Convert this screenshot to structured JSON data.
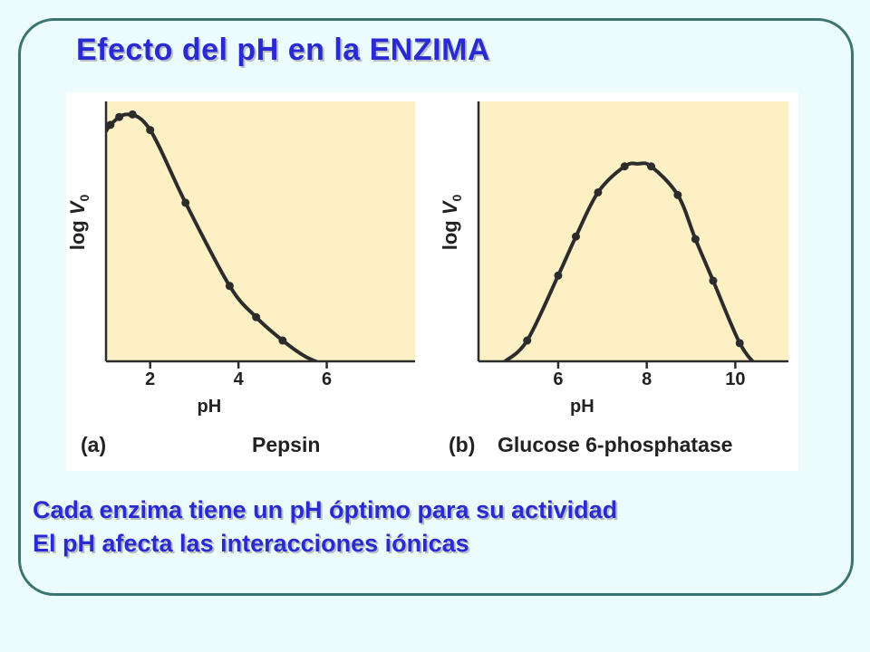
{
  "slide": {
    "title": "Efecto del pH en la ENZIMA",
    "lines": [
      "Cada enzima tiene un pH óptimo para su actividad",
      "El pH afecta las interacciones iónicas"
    ]
  },
  "colors": {
    "title": "#2a2ad2",
    "plot_bg": "#fdf0c5",
    "curve": "#2c2c2c",
    "frame": "#3b7570"
  },
  "chart_data": [
    {
      "type": "line",
      "panel_label": "(a)",
      "title": "Pepsin",
      "xlabel": "pH",
      "ylabel": "log V",
      "ylabel_sub": "0",
      "xlim": [
        1,
        8
      ],
      "ylim": [
        0,
        1
      ],
      "xticks": [
        2,
        4,
        6
      ],
      "grid": false,
      "y_tick_labels": false,
      "curve": {
        "x": [
          0.9,
          1.1,
          1.5,
          2.0,
          2.8,
          3.8,
          4.4,
          5.0,
          5.5,
          5.9
        ],
        "y": [
          0.85,
          0.91,
          0.95,
          0.89,
          0.61,
          0.29,
          0.17,
          0.08,
          0.02,
          -0.01
        ]
      },
      "points": {
        "x": [
          1.1,
          1.3,
          1.6,
          2.0,
          2.8,
          3.8,
          4.4,
          5.0
        ],
        "y": [
          0.91,
          0.94,
          0.95,
          0.89,
          0.61,
          0.29,
          0.17,
          0.08
        ]
      }
    },
    {
      "type": "line",
      "panel_label": "(b)",
      "title": "Glucose 6-phosphatase",
      "xlabel": "pH",
      "ylabel": "log V",
      "ylabel_sub": "0",
      "xlim": [
        4.2,
        11.2
      ],
      "ylim": [
        0,
        1
      ],
      "xticks": [
        6,
        8,
        10
      ],
      "grid": false,
      "y_tick_labels": false,
      "curve": {
        "x": [
          4.8,
          5.3,
          6.0,
          6.4,
          6.9,
          7.5,
          7.8,
          8.1,
          8.7,
          9.1,
          9.5,
          10.1,
          10.5
        ],
        "y": [
          0.0,
          0.08,
          0.33,
          0.48,
          0.65,
          0.75,
          0.76,
          0.75,
          0.64,
          0.47,
          0.31,
          0.07,
          -0.02
        ]
      },
      "points": {
        "x": [
          5.3,
          6.0,
          6.4,
          6.9,
          7.5,
          8.1,
          8.7,
          9.1,
          9.5,
          10.1
        ],
        "y": [
          0.08,
          0.33,
          0.48,
          0.65,
          0.75,
          0.75,
          0.64,
          0.47,
          0.31,
          0.07
        ]
      }
    }
  ]
}
